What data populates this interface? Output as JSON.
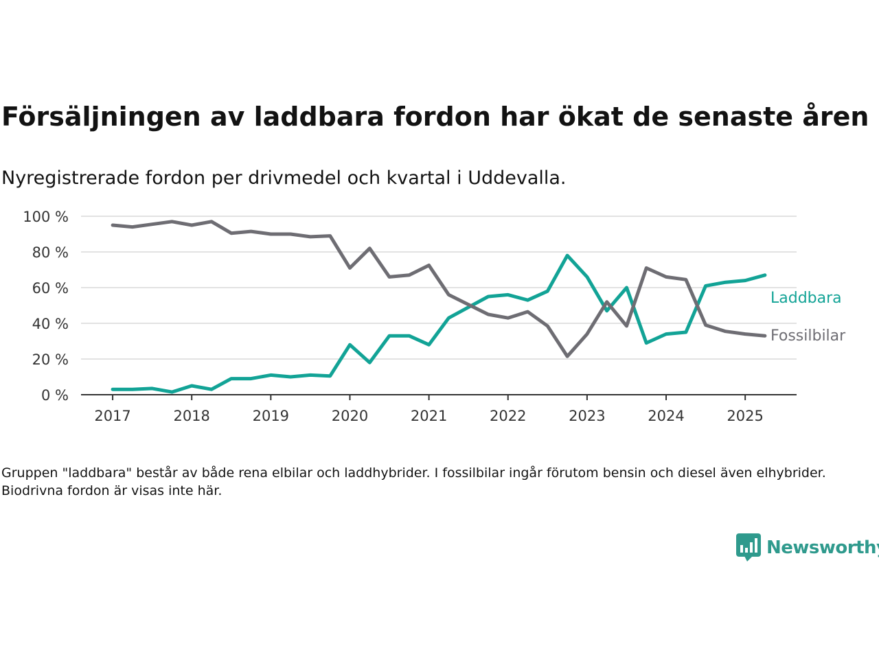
{
  "header": {
    "title": "Försäljningen av laddbara fordon har ökat de senaste åren",
    "subtitle": "Nyregistrerade fordon per drivmedel och kvartal i Uddevalla."
  },
  "footnote": "Gruppen \"laddbara\" består av både rena elbilar och laddhybrider. I fossilbilar ingår förutom bensin och diesel även elhybrider. Biodrivna fordon är visas inte här.",
  "brand": {
    "name": "Newsworthy",
    "color": "#2f9a8d"
  },
  "chart_data": {
    "type": "line",
    "x_ticks": [
      "2017",
      "2018",
      "2019",
      "2020",
      "2021",
      "2022",
      "2023",
      "2024",
      "2025"
    ],
    "y_ticks": [
      "0 %",
      "20 %",
      "40 %",
      "60 %",
      "80 %",
      "100 %"
    ],
    "ylim": [
      0,
      100
    ],
    "xlim": [
      2016.6,
      2025.65
    ],
    "grid": true,
    "x": [
      2017.0,
      2017.25,
      2017.5,
      2017.75,
      2018.0,
      2018.25,
      2018.5,
      2018.75,
      2019.0,
      2019.25,
      2019.5,
      2019.75,
      2020.0,
      2020.25,
      2020.5,
      2020.75,
      2021.0,
      2021.25,
      2021.5,
      2021.75,
      2022.0,
      2022.25,
      2022.5,
      2022.75,
      2023.0,
      2023.25,
      2023.5,
      2023.75,
      2024.0,
      2024.25,
      2024.5,
      2024.75,
      2025.0,
      2025.25
    ],
    "series": [
      {
        "name": "Laddbara",
        "color": "#12a396",
        "values": [
          3,
          3,
          3.5,
          1.5,
          5,
          3,
          9,
          9,
          11,
          10,
          11,
          10.5,
          28,
          18,
          33,
          33,
          28,
          43,
          49,
          55,
          56,
          53,
          58,
          78,
          66,
          47,
          60,
          29,
          34,
          35,
          61,
          63,
          64,
          67
        ]
      },
      {
        "name": "Fossilbilar",
        "color": "#6e6d73",
        "values": [
          95,
          94,
          95.5,
          97,
          95,
          97,
          90.5,
          91.5,
          90,
          90,
          88.5,
          89,
          71,
          82,
          66,
          67,
          72.5,
          56,
          50.5,
          45,
          43,
          46.5,
          38.5,
          21.5,
          34,
          52,
          38.5,
          71,
          66,
          64.5,
          39,
          35.5,
          34,
          33
        ]
      }
    ]
  }
}
